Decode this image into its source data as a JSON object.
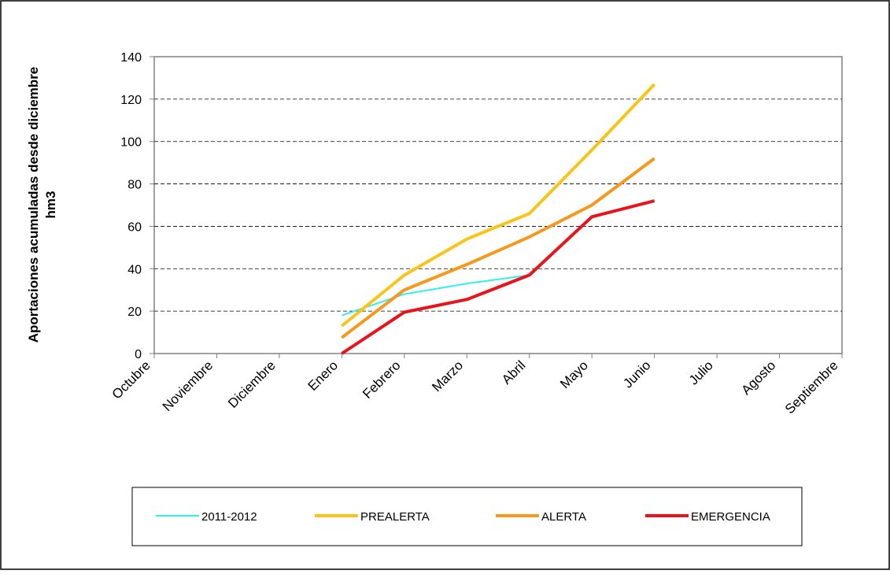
{
  "chart_data": {
    "type": "line",
    "ylabel": [
      "Aportaciones acumuladas desde diciembre",
      "hm3"
    ],
    "categories": [
      "Octubre",
      "Noviembre",
      "Diciembre",
      "Enero",
      "Febrero",
      "Marzo",
      "Abril",
      "Mayo",
      "Junio",
      "Julio",
      "Agosto",
      "Septiembre"
    ],
    "series": [
      {
        "name": "2011-2012",
        "color": "#33f0f0",
        "width": 2,
        "values": [
          null,
          null,
          null,
          18,
          28,
          33,
          37,
          null,
          null,
          null,
          null,
          null
        ]
      },
      {
        "name": "PREALERTA",
        "color": "#f9c41a",
        "width": 4,
        "values": [
          null,
          null,
          null,
          13,
          37,
          54,
          66,
          96,
          127,
          null,
          null,
          null
        ]
      },
      {
        "name": "ALERTA",
        "color": "#f7981d",
        "width": 4,
        "values": [
          null,
          null,
          null,
          7.5,
          30,
          42,
          55,
          70,
          92,
          null,
          null,
          null
        ]
      },
      {
        "name": "EMERGENCIA",
        "color": "#e8131b",
        "width": 4,
        "values": [
          null,
          null,
          null,
          0,
          19.5,
          25.5,
          37,
          64.5,
          72,
          null,
          null,
          null
        ]
      }
    ],
    "ylim": [
      0,
      140
    ],
    "yticks": [
      0,
      20,
      40,
      60,
      80,
      100,
      120,
      140
    ],
    "grid": true
  }
}
